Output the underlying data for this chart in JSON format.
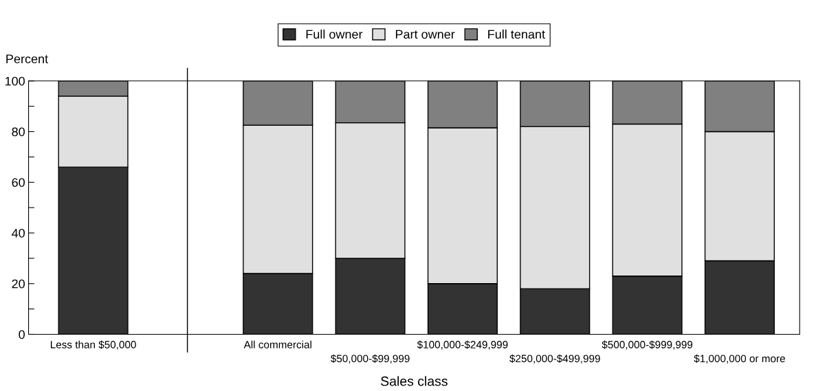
{
  "chart_data": {
    "type": "bar",
    "stacked": true,
    "xlabel": "Sales class",
    "ylabel": "Percent",
    "categories": [
      "Less than $50,000",
      null,
      "All commercial",
      "$50,000-$99,999",
      "$100,000-$249,999",
      "$250,000-$499,999",
      "$500,000-$999,999",
      "$1,000,000 or more"
    ],
    "series": [
      {
        "name": "Full owner",
        "color": "#333333",
        "values": [
          66,
          null,
          24,
          30,
          20,
          18,
          23,
          29
        ]
      },
      {
        "name": "Part owner",
        "color": "#e0e0e0",
        "values": [
          28,
          null,
          58.5,
          53.5,
          61.5,
          64,
          60,
          51
        ]
      },
      {
        "name": "Full tenant",
        "color": "#808080",
        "values": [
          6,
          null,
          17.5,
          16.5,
          18.5,
          18,
          17,
          20
        ]
      }
    ],
    "ylim": [
      0,
      100
    ],
    "yticks": [
      0,
      {
        "value": 10,
        "label": null
      },
      20,
      {
        "value": 30,
        "label": null
      },
      40,
      {
        "value": 50,
        "label": null
      },
      60,
      {
        "value": 70,
        "label": null
      },
      80,
      {
        "value": 90,
        "label": null
      },
      100
    ],
    "legend": "top"
  }
}
